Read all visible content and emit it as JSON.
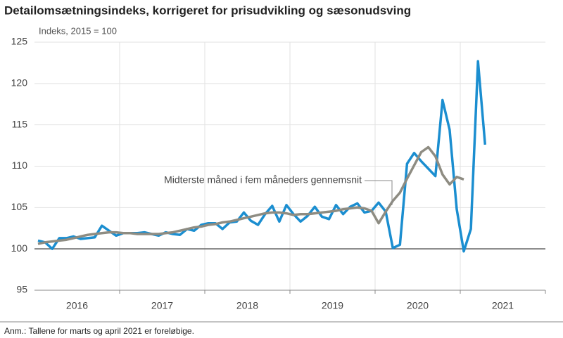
{
  "chart_data": {
    "type": "line",
    "title": "Detailomsætningsindeks, korrigeret for prisudvikling og sæsonudsving",
    "y_label": "Indeks, 2015 = 100",
    "annotation": "Midterste måned i fem måneders gennemsnit",
    "note": "Anm.: Tallene for marts og april 2021 er foreløbige.",
    "year_labels": [
      "2016",
      "2017",
      "2018",
      "2019",
      "2020",
      "2021"
    ],
    "ylim": [
      95,
      125
    ],
    "yticks": [
      95,
      100,
      105,
      110,
      115,
      120,
      125
    ],
    "baseline": 100,
    "grid": true,
    "series": [
      {
        "color": "#1b8ed0",
        "values": [
          101.0,
          100.8,
          100.0,
          101.3,
          101.3,
          101.5,
          101.2,
          101.3,
          101.4,
          102.8,
          102.2,
          101.6,
          101.9,
          101.9,
          101.9,
          102.0,
          101.8,
          101.6,
          102.0,
          101.8,
          101.7,
          102.4,
          102.2,
          102.9,
          103.1,
          103.1,
          102.4,
          103.2,
          103.3,
          104.4,
          103.4,
          102.9,
          104.2,
          105.2,
          103.3,
          105.3,
          104.2,
          103.3,
          104.0,
          105.1,
          103.9,
          103.6,
          105.3,
          104.2,
          105.1,
          105.5,
          104.4,
          104.6,
          105.6,
          104.5,
          100.1,
          100.5,
          110.3,
          111.6,
          110.6,
          109.7,
          108.8,
          118.0,
          114.4,
          104.8,
          99.7,
          102.4,
          122.7,
          112.6
        ]
      },
      {
        "color": "#8e8c82",
        "values": [
          100.6,
          100.8,
          100.9,
          101.0,
          101.1,
          101.3,
          101.5,
          101.7,
          101.8,
          101.9,
          102.0,
          102.0,
          101.9,
          101.9,
          101.8,
          101.8,
          101.8,
          101.8,
          101.9,
          102.0,
          102.2,
          102.4,
          102.6,
          102.7,
          102.9,
          103.0,
          103.2,
          103.3,
          103.5,
          103.7,
          103.9,
          104.1,
          104.3,
          104.4,
          104.4,
          104.3,
          104.1,
          104.2,
          104.2,
          104.3,
          104.4,
          104.5,
          104.6,
          104.8,
          104.9,
          105.0,
          104.9,
          104.6,
          103.1,
          104.5,
          105.8,
          106.8,
          108.5,
          110.1,
          111.7,
          112.3,
          111.2,
          109.0,
          107.8,
          108.7,
          108.4,
          null,
          null,
          null
        ]
      }
    ]
  }
}
